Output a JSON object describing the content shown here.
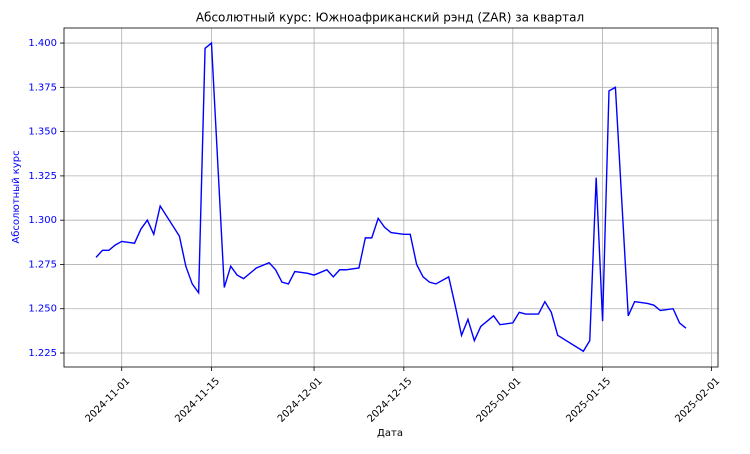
{
  "chart_data": {
    "type": "line",
    "title": "Абсолютный курс: Южноафриканский рэнд (ZAR) за квартал",
    "xlabel": "Дата",
    "ylabel": "Абсолютный курс",
    "axis_color": "#0000ff",
    "grid": true,
    "x": [
      "2024-10-28",
      "2024-10-29",
      "2024-10-30",
      "2024-10-31",
      "2024-11-01",
      "2024-11-03",
      "2024-11-04",
      "2024-11-05",
      "2024-11-06",
      "2024-11-07",
      "2024-11-10",
      "2024-11-11",
      "2024-11-12",
      "2024-11-13",
      "2024-11-14",
      "2024-11-15",
      "2024-11-17",
      "2024-11-18",
      "2024-11-19",
      "2024-11-20",
      "2024-11-22",
      "2024-11-24",
      "2024-11-25",
      "2024-11-26",
      "2024-11-27",
      "2024-11-28",
      "2024-11-30",
      "2024-12-01",
      "2024-12-03",
      "2024-12-04",
      "2024-12-05",
      "2024-12-06",
      "2024-12-08",
      "2024-12-09",
      "2024-12-10",
      "2024-12-11",
      "2024-12-12",
      "2024-12-13",
      "2024-12-15",
      "2024-12-16",
      "2024-12-17",
      "2024-12-18",
      "2024-12-19",
      "2024-12-20",
      "2024-12-22",
      "2024-12-23",
      "2024-12-24",
      "2024-12-25",
      "2024-12-26",
      "2024-12-27",
      "2024-12-29",
      "2024-12-30",
      "2025-01-01",
      "2025-01-02",
      "2025-01-03",
      "2025-01-05",
      "2025-01-06",
      "2025-01-07",
      "2025-01-08",
      "2025-01-12",
      "2025-01-13",
      "2025-01-14",
      "2025-01-15",
      "2025-01-16",
      "2025-01-17",
      "2025-01-19",
      "2025-01-20",
      "2025-01-22",
      "2025-01-23",
      "2025-01-24",
      "2025-01-26",
      "2025-01-27",
      "2025-01-28"
    ],
    "series": [
      {
        "name": "ZAR",
        "color": "#0000ff",
        "values": [
          1.279,
          1.283,
          1.283,
          1.286,
          1.288,
          1.287,
          1.295,
          1.3,
          1.292,
          1.308,
          1.291,
          1.274,
          1.264,
          1.259,
          1.397,
          1.4,
          1.262,
          1.274,
          1.269,
          1.267,
          1.273,
          1.276,
          1.272,
          1.265,
          1.264,
          1.271,
          1.27,
          1.269,
          1.272,
          1.268,
          1.272,
          1.272,
          1.273,
          1.29,
          1.29,
          1.301,
          1.296,
          1.293,
          1.292,
          1.292,
          1.275,
          1.268,
          1.265,
          1.264,
          1.268,
          1.252,
          1.235,
          1.244,
          1.232,
          1.24,
          1.246,
          1.241,
          1.242,
          1.248,
          1.247,
          1.247,
          1.254,
          1.248,
          1.235,
          1.226,
          1.232,
          1.324,
          1.243,
          1.373,
          1.375,
          1.246,
          1.254,
          1.253,
          1.252,
          1.249,
          1.25,
          1.242,
          1.239
        ]
      }
    ],
    "xlim": [
      "2024-10-23",
      "2025-02-02"
    ],
    "xticks": [
      "2024-11-01",
      "2024-11-15",
      "2024-12-01",
      "2024-12-15",
      "2025-01-01",
      "2025-01-15",
      "2025-02-01"
    ],
    "ylim": [
      1.2171,
      1.4085
    ],
    "yticks": [
      1.225,
      {
        "value": 1.25,
        "label": "1.250"
      },
      1.275,
      {
        "value": 1.3,
        "label": "1.300"
      },
      1.325,
      {
        "value": 1.35,
        "label": "1.350"
      },
      1.375,
      {
        "value": 1.4,
        "label": "1.400"
      }
    ]
  }
}
